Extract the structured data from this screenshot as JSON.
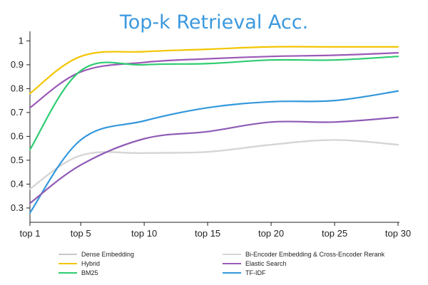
{
  "chart_data": {
    "type": "line",
    "title": "Top-k Retrieval Acc.",
    "title_color": "#3b99de",
    "xlabel": "",
    "ylabel": "",
    "categories": [
      "top 1",
      "top 5",
      "top 10",
      "top 15",
      "top 20",
      "top 25",
      "top 30"
    ],
    "x": [
      1,
      5,
      10,
      15,
      20,
      25,
      30
    ],
    "yticks": [
      "0.3",
      "0.4",
      "0.5",
      "0.6",
      "0.7",
      "0.8",
      "0.9",
      "1"
    ],
    "ylim": [
      0.24,
      1.04
    ],
    "grid": false,
    "legend_position": "bottom",
    "series": [
      {
        "name": "Dense Embedding",
        "color": "#c8c8c8",
        "values": [
          0.38,
          0.52,
          0.53,
          0.535,
          0.565,
          0.585,
          0.565
        ]
      },
      {
        "name": "Bi-Encoder Embedding & Cross-Encoder Rerank",
        "color": "#d6d6d6",
        "values": [
          0.38,
          0.52,
          0.53,
          0.535,
          0.565,
          0.585,
          0.565
        ]
      },
      {
        "name": "Hybrid",
        "color": "#f2c500",
        "values": [
          0.78,
          0.935,
          0.955,
          0.965,
          0.975,
          0.975,
          0.975
        ]
      },
      {
        "name": "Elastic Search",
        "color": "#9b59b6",
        "values": [
          0.72,
          0.87,
          0.91,
          0.925,
          0.935,
          0.94,
          0.95
        ]
      },
      {
        "name": "BM25",
        "color": "#2ecc71",
        "values": [
          0.545,
          0.875,
          0.9,
          0.905,
          0.92,
          0.92,
          0.935
        ]
      },
      {
        "name": "TF-IDF",
        "color": "#3498db",
        "values": [
          0.28,
          0.585,
          0.665,
          0.72,
          0.745,
          0.75,
          0.79
        ]
      },
      {
        "name": "",
        "color": "#8e5bb5",
        "values": [
          0.32,
          0.48,
          0.59,
          0.62,
          0.66,
          0.66,
          0.68
        ]
      }
    ]
  }
}
